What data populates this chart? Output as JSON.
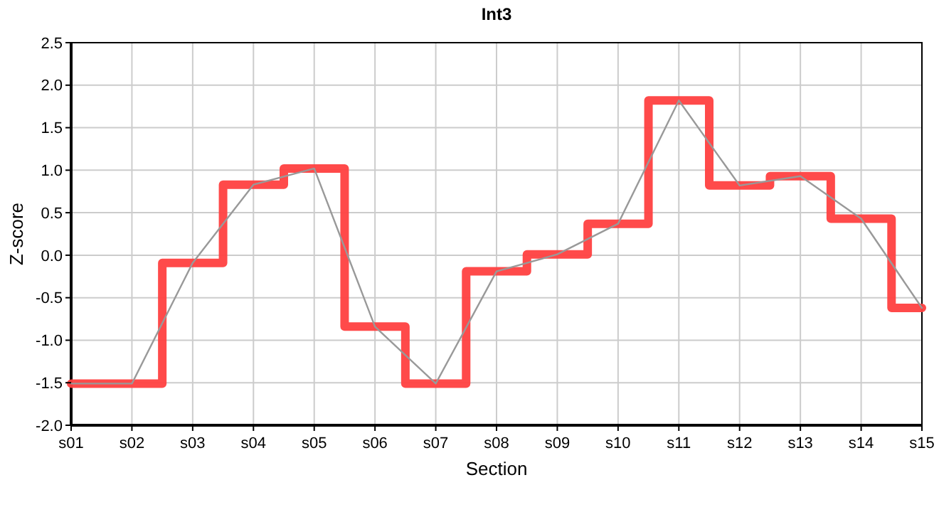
{
  "chart_data": {
    "type": "step",
    "title": "Int3",
    "xlabel": "Section",
    "ylabel": "Z-score",
    "categories": [
      "s01",
      "s02",
      "s03",
      "s04",
      "s05",
      "s06",
      "s07",
      "s08",
      "s09",
      "s10",
      "s11",
      "s12",
      "s13",
      "s14",
      "s15"
    ],
    "series": [
      {
        "color": "#ff4040",
        "values": [
          -1.51,
          -1.51,
          -0.09,
          0.83,
          1.02,
          -0.84,
          -1.51,
          -0.19,
          0.01,
          0.37,
          1.82,
          0.82,
          0.93,
          0.43,
          -0.62
        ]
      },
      {
        "type": "line",
        "color": "#999999",
        "values": [
          -1.51,
          -1.51,
          -0.09,
          0.83,
          1.02,
          -0.84,
          -1.51,
          -0.19,
          0.01,
          0.37,
          1.82,
          0.82,
          0.93,
          0.43,
          -0.62
        ]
      }
    ],
    "ylim": [
      -2.0,
      2.5
    ],
    "yticks": [
      {
        "value": -2,
        "label": "-2.0"
      },
      {
        "value": -1.5,
        "label": "-1.5"
      },
      {
        "value": -1,
        "label": "-1.0"
      },
      {
        "value": -0.5,
        "label": "-0.5"
      },
      {
        "value": 0,
        "label": "0.0"
      },
      {
        "value": 0.5,
        "label": "0.5"
      },
      {
        "value": 1,
        "label": "1.0"
      },
      {
        "value": 1.5,
        "label": "1.5"
      },
      {
        "value": 2,
        "label": "2.0"
      },
      {
        "value": 2.5,
        "label": "2.5"
      }
    ],
    "grid": true
  }
}
